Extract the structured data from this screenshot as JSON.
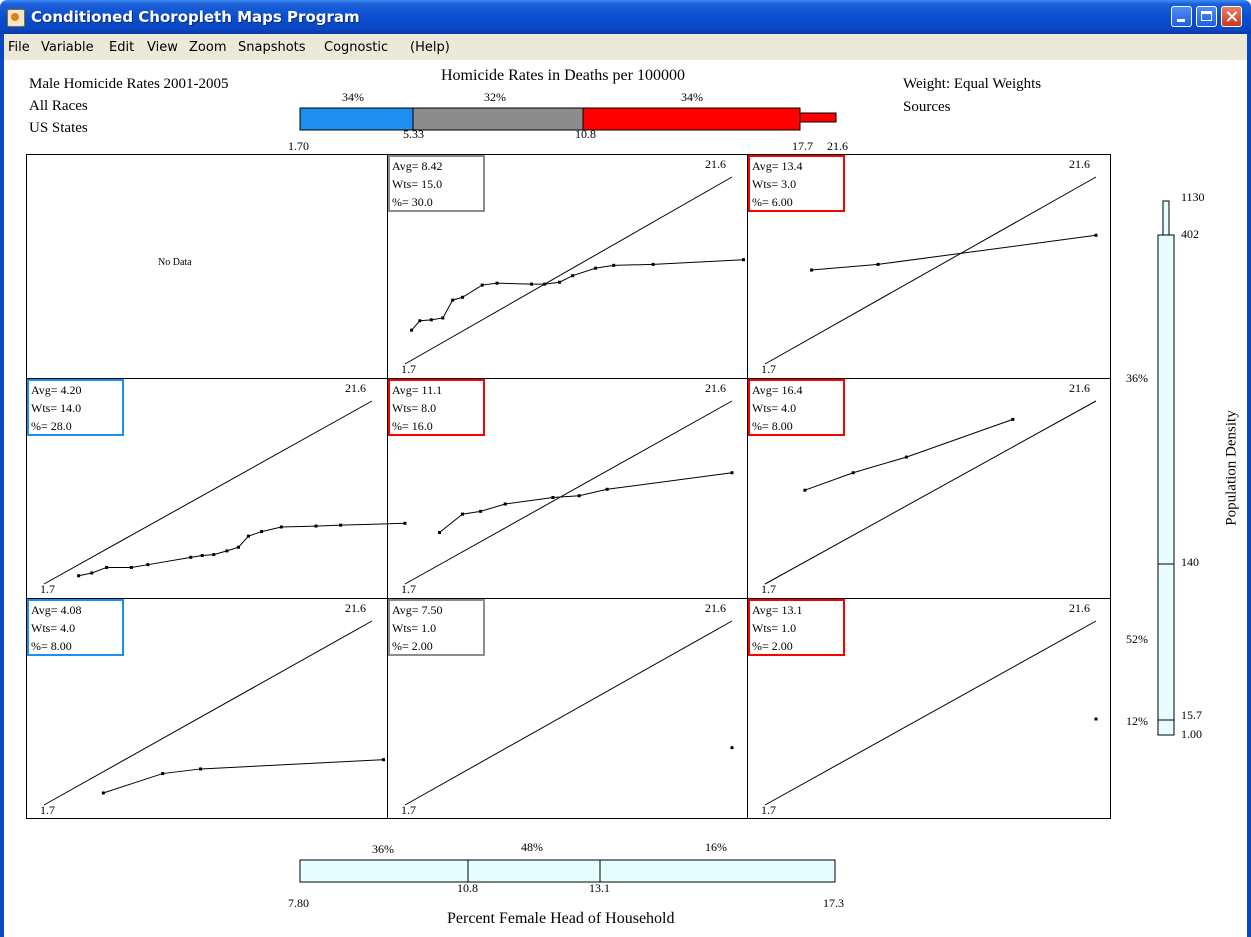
{
  "window": {
    "title": "Conditioned Choropleth Maps Program",
    "buttons": [
      "minimize",
      "maximize",
      "close"
    ]
  },
  "menu": [
    "File",
    "Variable",
    "Edit",
    "View",
    "Zoom",
    "Snapshots",
    "Cognostic",
    "(Help)"
  ],
  "header": {
    "lines": [
      "Male Homicide Rates 2001-2005",
      "All Races",
      "US States"
    ],
    "weight": "Weight: Equal Weights",
    "sources": "Sources"
  },
  "colors": {
    "blue": "#1e8ef0",
    "gray": "#8c8c8c",
    "red": "#ff0000",
    "slider_fill": "#e6feff"
  },
  "homicide_scale": {
    "title": "Homicide Rates in Deaths per 100000",
    "min": 1.7,
    "breaks": [
      5.33,
      10.8,
      17.7
    ],
    "max": 21.6,
    "percents": [
      "34%",
      "32%",
      "34%"
    ],
    "tick_labels": [
      "1.70",
      "5.33",
      "10.8",
      "17.7",
      "21.6"
    ]
  },
  "density_scale": {
    "label": "Population Density",
    "min": 1.0,
    "breaks": [
      15.7,
      140,
      402
    ],
    "max": 1130,
    "tick_labels": [
      "1130",
      "402",
      "140",
      "15.7",
      "1.00"
    ],
    "percents": [
      "36%",
      "52%",
      "12%"
    ]
  },
  "female_scale": {
    "label": "Percent Female Head of Household",
    "min": 7.8,
    "breaks": [
      10.8,
      13.1
    ],
    "max": 17.3,
    "tick_labels": [
      "7.80",
      "10.8",
      "13.1",
      "17.3"
    ],
    "percents": [
      "36%",
      "48%",
      "16%"
    ]
  },
  "panels": [
    {
      "row": 0,
      "col": 0,
      "no_data": true,
      "no_data_label": "No Data"
    },
    {
      "row": 0,
      "col": 1,
      "avg": "Avg= 8.42",
      "wts": "Wts= 15.0",
      "pct": "%= 30.0",
      "class": "gray",
      "min_label": "1.7",
      "max_label": "21.6"
    },
    {
      "row": 0,
      "col": 2,
      "avg": "Avg= 13.4",
      "wts": "Wts= 3.0",
      "pct": "%= 6.00",
      "class": "red",
      "min_label": "1.7",
      "max_label": "21.6"
    },
    {
      "row": 1,
      "col": 0,
      "avg": "Avg= 4.20",
      "wts": "Wts= 14.0",
      "pct": "%= 28.0",
      "class": "blue",
      "min_label": "1.7",
      "max_label": "21.6"
    },
    {
      "row": 1,
      "col": 1,
      "avg": "Avg= 11.1",
      "wts": "Wts= 8.0",
      "pct": "%= 16.0",
      "class": "red",
      "min_label": "1.7",
      "max_label": "21.6"
    },
    {
      "row": 1,
      "col": 2,
      "avg": "Avg= 16.4",
      "wts": "Wts= 4.0",
      "pct": "%= 8.00",
      "class": "red",
      "min_label": "1.7",
      "max_label": "21.6"
    },
    {
      "row": 2,
      "col": 0,
      "avg": "Avg= 4.08",
      "wts": "Wts= 4.0",
      "pct": "%= 8.00",
      "class": "blue",
      "min_label": "1.7",
      "max_label": "21.6"
    },
    {
      "row": 2,
      "col": 1,
      "avg": "Avg= 7.50",
      "wts": "Wts= 1.0",
      "pct": "%= 2.00",
      "class": "gray",
      "min_label": "1.7",
      "max_label": "21.6"
    },
    {
      "row": 2,
      "col": 2,
      "avg": "Avg= 13.1",
      "wts": "Wts= 1.0",
      "pct": "%= 2.00",
      "class": "red",
      "min_label": "1.7",
      "max_label": "21.6"
    }
  ],
  "chart_data": [
    {
      "type": "line",
      "panel": "row1-col2",
      "range": [
        1.7,
        21.6
      ],
      "series": [
        {
          "values": [
            [
              2.1,
              5.3
            ],
            [
              2.6,
              6.3
            ],
            [
              3.3,
              6.4
            ],
            [
              4.0,
              6.6
            ],
            [
              4.6,
              8.5
            ],
            [
              5.2,
              8.8
            ],
            [
              6.4,
              10.1
            ],
            [
              7.3,
              10.3
            ],
            [
              9.4,
              10.2
            ],
            [
              10.2,
              10.2
            ],
            [
              11.1,
              10.4
            ],
            [
              11.9,
              11.1
            ],
            [
              13.3,
              11.9
            ],
            [
              14.4,
              12.2
            ],
            [
              16.8,
              12.3
            ],
            [
              22.3,
              12.8
            ]
          ]
        }
      ]
    },
    {
      "type": "line",
      "panel": "row1-col3",
      "range": [
        1.7,
        21.6
      ],
      "series": [
        {
          "values": [
            [
              4.5,
              11.7
            ],
            [
              8.5,
              12.3
            ],
            [
              21.6,
              15.4
            ]
          ]
        }
      ]
    },
    {
      "type": "line",
      "panel": "row2-col1",
      "range": [
        1.7,
        21.6
      ],
      "series": [
        {
          "values": [
            [
              3.8,
              2.6
            ],
            [
              4.6,
              2.9
            ],
            [
              5.5,
              3.5
            ],
            [
              7.0,
              3.5
            ],
            [
              8.0,
              3.8
            ],
            [
              10.6,
              4.6
            ],
            [
              11.3,
              4.8
            ],
            [
              12.0,
              4.9
            ],
            [
              12.8,
              5.3
            ],
            [
              13.5,
              5.7
            ],
            [
              14.1,
              6.9
            ],
            [
              14.9,
              7.4
            ],
            [
              16.1,
              7.9
            ],
            [
              18.2,
              8.0
            ],
            [
              19.7,
              8.1
            ],
            [
              23.6,
              8.3
            ]
          ]
        }
      ]
    },
    {
      "type": "line",
      "panel": "row2-col2",
      "range": [
        1.7,
        21.6
      ],
      "series": [
        {
          "values": [
            [
              3.8,
              7.3
            ],
            [
              5.2,
              9.3
            ],
            [
              6.3,
              9.6
            ],
            [
              7.8,
              10.4
            ],
            [
              10.7,
              11.1
            ],
            [
              12.3,
              11.3
            ],
            [
              14.0,
              12.0
            ],
            [
              21.6,
              13.8
            ]
          ]
        }
      ]
    },
    {
      "type": "line",
      "panel": "row2-col3",
      "range": [
        1.7,
        21.6
      ],
      "series": [
        {
          "values": [
            [
              4.1,
              11.9
            ],
            [
              7.0,
              13.8
            ],
            [
              10.2,
              15.5
            ],
            [
              16.6,
              19.6
            ]
          ]
        }
      ]
    },
    {
      "type": "line",
      "panel": "row3-col1",
      "range": [
        1.7,
        21.6
      ],
      "series": [
        {
          "values": [
            [
              5.3,
              3.0
            ],
            [
              8.9,
              5.1
            ],
            [
              11.2,
              5.6
            ],
            [
              22.3,
              6.6
            ]
          ]
        }
      ]
    },
    {
      "type": "scatter",
      "panel": "row3-col2",
      "range": [
        1.7,
        21.6
      ],
      "series": [
        {
          "values": [
            [
              21.6,
              7.9
            ]
          ]
        }
      ]
    },
    {
      "type": "scatter",
      "panel": "row3-col3",
      "range": [
        1.7,
        21.6
      ],
      "series": [
        {
          "values": [
            [
              21.6,
              11.0
            ]
          ]
        }
      ]
    }
  ]
}
